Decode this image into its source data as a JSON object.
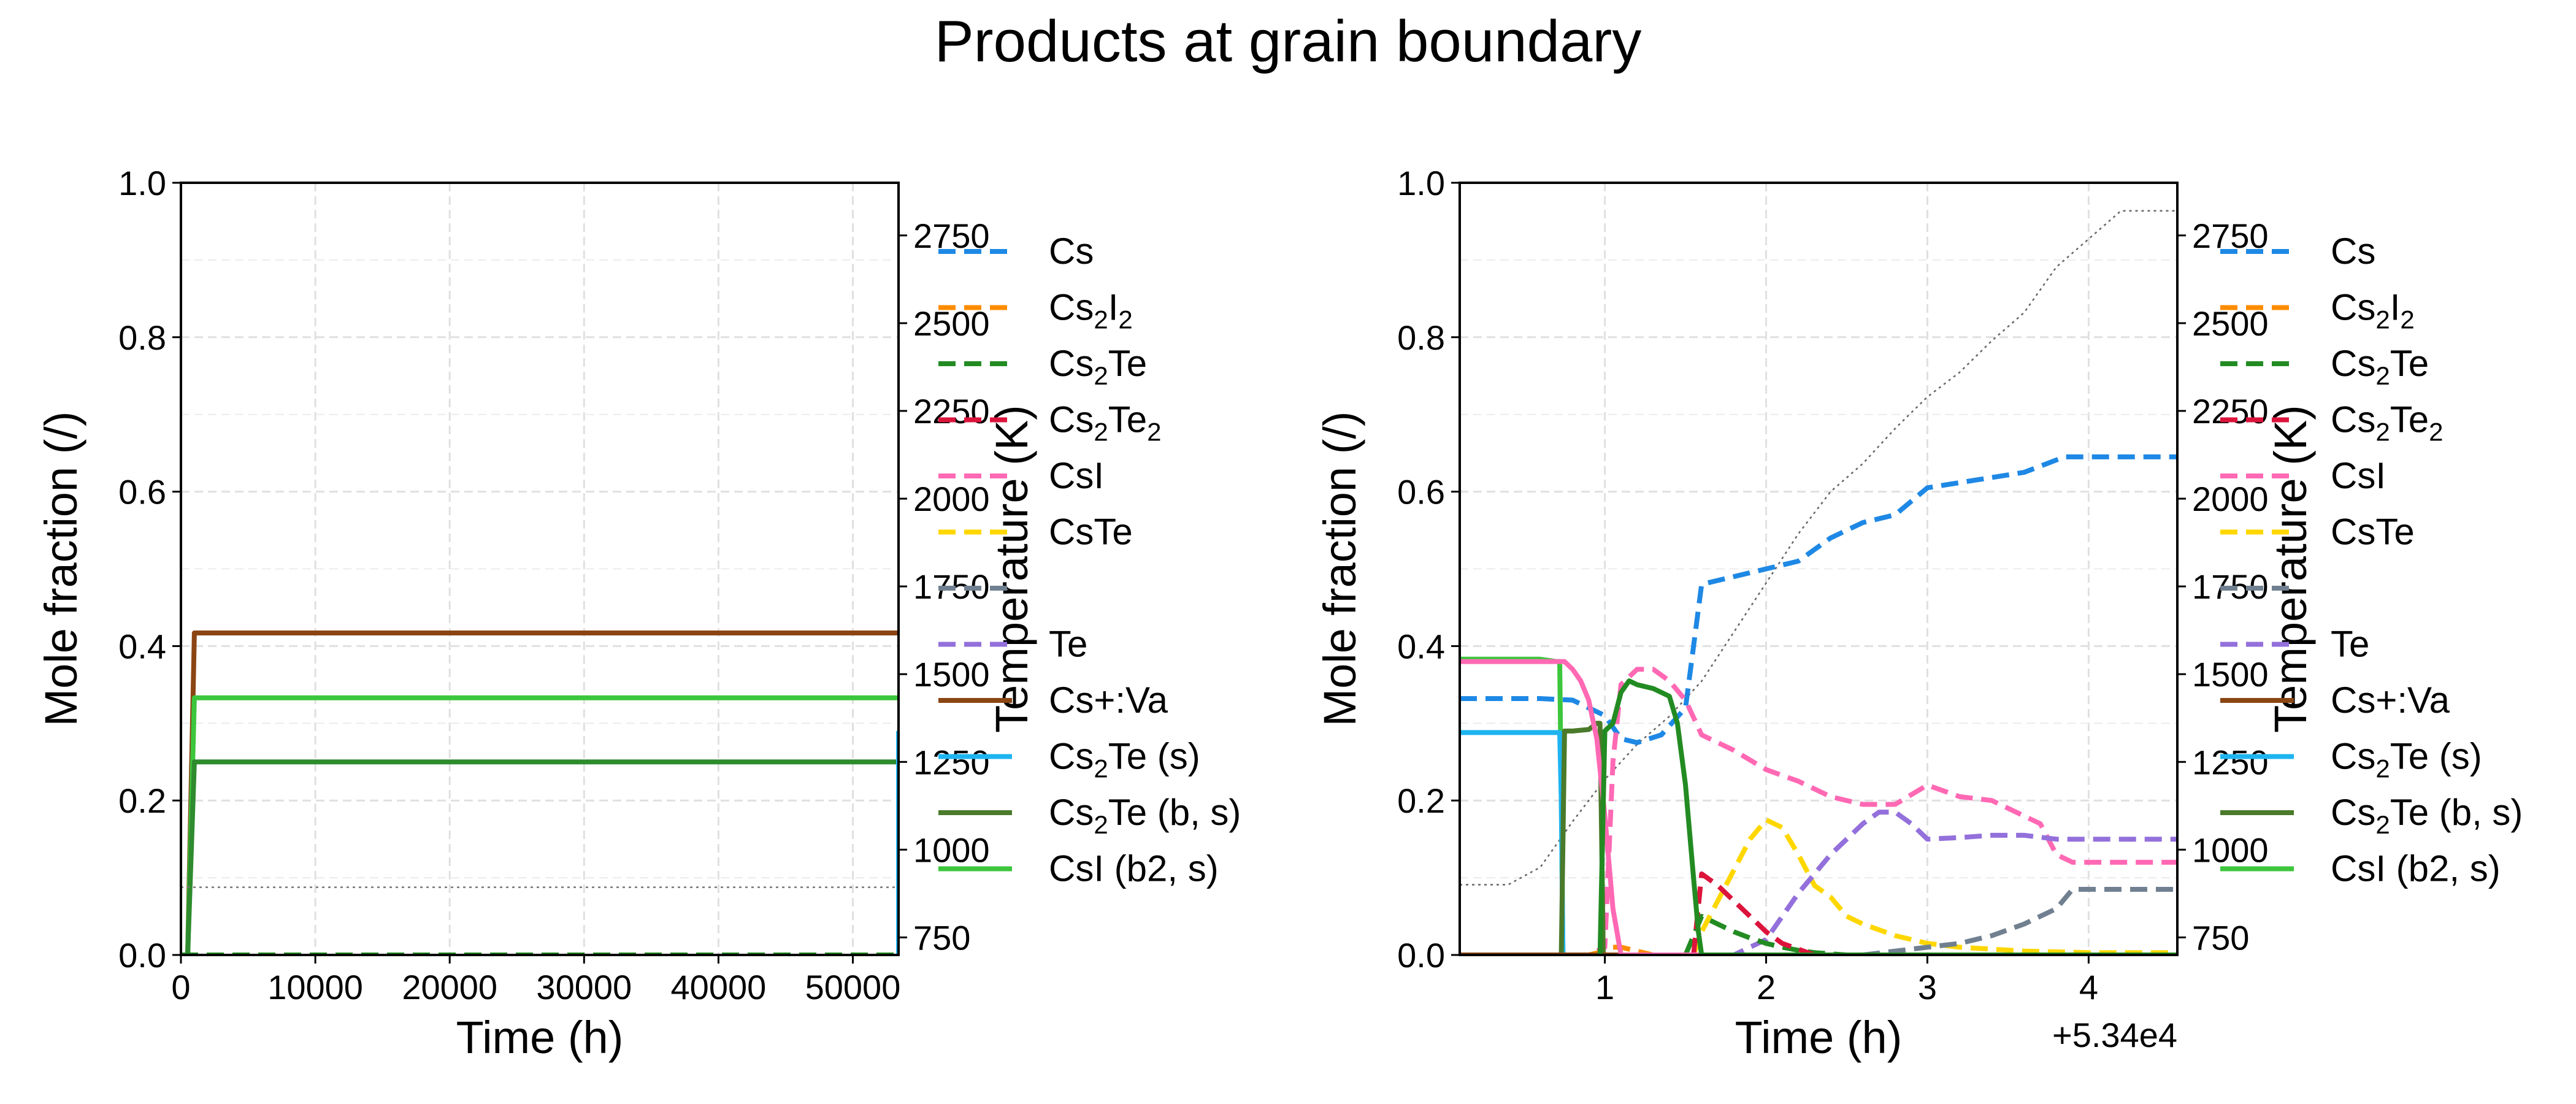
{
  "figure": {
    "title": "Products at grain boundary"
  },
  "chart_data": [
    {
      "type": "line",
      "xlabel": "Time (h)",
      "ylabel": "Mole fraction (/)",
      "y2label": "Temperature (K)",
      "x_offset_label": "",
      "xlim": [
        0,
        53400
      ],
      "ylim": [
        0,
        1
      ],
      "y2lim": [
        700,
        2900
      ],
      "xticks": [
        0,
        10000,
        20000,
        30000,
        40000,
        50000
      ],
      "xtick_labels": [
        "0",
        "10000",
        "20000",
        "30000",
        "40000",
        "50000"
      ],
      "yticks": [
        0,
        0.2,
        0.4,
        0.6,
        0.8,
        1.0
      ],
      "ytick_labels": [
        "0.0",
        "0.2",
        "0.4",
        "0.6",
        "0.8",
        "1.0"
      ],
      "y2ticks": [
        750,
        1000,
        1250,
        1500,
        1750,
        2000,
        2250,
        2500,
        2750
      ],
      "y2tick_labels": [
        "750",
        "1000",
        "1250",
        "1500",
        "1750",
        "2000",
        "2250",
        "2500",
        "2750"
      ],
      "grid": true,
      "legend_position": "right",
      "series": [
        {
          "name": "Cs+:Va",
          "color": "#8b4513",
          "dash": "solid",
          "x": [
            0,
            500,
            1000,
            53400
          ],
          "y": [
            0,
            0,
            0.417,
            0.417
          ]
        },
        {
          "name": "CsI (b2, s)",
          "color": "#3cc63c",
          "dash": "solid",
          "x": [
            0,
            500,
            1000,
            53400
          ],
          "y": [
            0,
            0,
            0.333,
            0.333
          ]
        },
        {
          "name": "Cs2Te (b, s)",
          "color": "#2e8b2e",
          "dash": "solid",
          "x": [
            0,
            500,
            1000,
            53400
          ],
          "y": [
            0,
            0,
            0.25,
            0.25
          ]
        },
        {
          "name": "Cs2Te (s)",
          "color": "#1eb4f0",
          "dash": "solid",
          "x": [
            53300,
            53400,
            53400
          ],
          "y": [
            0.29,
            0.29,
            0.0
          ]
        },
        {
          "name": "Cs",
          "color": "#1e88e5",
          "dash": "dashed",
          "x": [
            0,
            53400
          ],
          "y": [
            0.0,
            0.0
          ]
        },
        {
          "name": "Cs2Te",
          "color": "#228b22",
          "dash": "dashed",
          "x": [
            0,
            53400
          ],
          "y": [
            0.0,
            0.0
          ]
        },
        {
          "name": "Temperature",
          "axis": "right",
          "color": "#777777",
          "dash": "dotted",
          "x": [
            0,
            53400
          ],
          "y": [
            893,
            893
          ]
        }
      ]
    },
    {
      "type": "line",
      "xlabel": "Time (h)",
      "ylabel": "Mole fraction (/)",
      "y2label": "Temperature (K)",
      "x_offset_label": "+5.34e4",
      "xlim": [
        0.1,
        4.55
      ],
      "ylim": [
        0,
        1
      ],
      "y2lim": [
        700,
        2900
      ],
      "xticks": [
        1,
        2,
        3,
        4
      ],
      "xtick_labels": [
        "1",
        "2",
        "3",
        "4"
      ],
      "yticks": [
        0,
        0.2,
        0.4,
        0.6,
        0.8,
        1.0
      ],
      "ytick_labels": [
        "0.0",
        "0.2",
        "0.4",
        "0.6",
        "0.8",
        "1.0"
      ],
      "y2ticks": [
        750,
        1000,
        1250,
        1500,
        1750,
        2000,
        2250,
        2500,
        2750
      ],
      "y2tick_labels": [
        "750",
        "1000",
        "1250",
        "1500",
        "1750",
        "2000",
        "2250",
        "2500",
        "2750"
      ],
      "grid": true,
      "legend_position": "right",
      "series": [
        {
          "name": "Temperature",
          "axis": "right",
          "color": "#666666",
          "dash": "dotted",
          "x": [
            0.1,
            0.4,
            0.6,
            0.8,
            1.0,
            1.2,
            1.4,
            1.6,
            1.8,
            2.0,
            2.2,
            2.4,
            2.6,
            2.8,
            3.0,
            3.2,
            3.4,
            3.6,
            3.8,
            4.0,
            4.2,
            4.55
          ],
          "y": [
            900,
            900,
            950,
            1080,
            1200,
            1300,
            1380,
            1480,
            1620,
            1760,
            1900,
            2020,
            2100,
            2200,
            2290,
            2360,
            2450,
            2530,
            2660,
            2740,
            2820,
            2820
          ]
        },
        {
          "name": "Cs",
          "color": "#1e88e5",
          "dash": "dashed",
          "x": [
            0.1,
            0.6,
            0.8,
            1.0,
            1.1,
            1.2,
            1.35,
            1.5,
            1.6,
            1.8,
            2.0,
            2.2,
            2.4,
            2.6,
            2.8,
            3.0,
            3.3,
            3.6,
            3.85,
            4.2,
            4.55
          ],
          "y": [
            0.332,
            0.332,
            0.33,
            0.31,
            0.28,
            0.275,
            0.285,
            0.32,
            0.48,
            0.49,
            0.5,
            0.51,
            0.54,
            0.56,
            0.57,
            0.605,
            0.615,
            0.625,
            0.645,
            0.645,
            0.645
          ]
        },
        {
          "name": "CsI",
          "color": "#ff69b4",
          "dash": "dashed",
          "x": [
            0.8,
            0.9,
            1.0,
            1.05,
            1.1,
            1.2,
            1.3,
            1.4,
            1.5,
            1.6,
            1.8,
            2.0,
            2.2,
            2.4,
            2.6,
            2.8,
            3.0,
            3.2,
            3.4,
            3.6,
            3.7,
            3.8,
            3.9,
            4.55
          ],
          "y": [
            0.0,
            0.0,
            0.01,
            0.25,
            0.35,
            0.37,
            0.37,
            0.355,
            0.33,
            0.285,
            0.265,
            0.24,
            0.225,
            0.205,
            0.195,
            0.195,
            0.22,
            0.205,
            0.2,
            0.18,
            0.17,
            0.13,
            0.12,
            0.12
          ]
        },
        {
          "name": "CsTe",
          "color": "#ffd700",
          "dash": "dashed",
          "x": [
            1.55,
            1.6,
            1.7,
            1.8,
            1.9,
            2.0,
            2.1,
            2.2,
            2.3,
            2.4,
            2.5,
            2.6,
            2.8,
            3.0,
            3.2,
            3.6,
            4.0,
            4.55
          ],
          "y": [
            0.0,
            0.03,
            0.07,
            0.11,
            0.15,
            0.175,
            0.165,
            0.13,
            0.09,
            0.075,
            0.05,
            0.04,
            0.025,
            0.015,
            0.01,
            0.005,
            0.003,
            0.003
          ]
        },
        {
          "name": "Te",
          "color": "#9370db",
          "dash": "dashed",
          "x": [
            1.6,
            1.8,
            2.0,
            2.2,
            2.4,
            2.6,
            2.7,
            2.8,
            2.9,
            3.0,
            3.2,
            3.4,
            3.6,
            3.8,
            4.0,
            4.55
          ],
          "y": [
            0.0,
            0.0,
            0.02,
            0.08,
            0.13,
            0.17,
            0.185,
            0.185,
            0.17,
            0.15,
            0.152,
            0.155,
            0.155,
            0.15,
            0.15,
            0.15
          ]
        },
        {
          "name": "Cs2Te",
          "color": "#228b22",
          "dash": "dashed",
          "x": [
            1.5,
            1.6,
            1.7,
            1.8,
            1.9,
            2.0,
            2.1,
            2.2,
            2.3,
            2.5,
            4.55
          ],
          "y": [
            0.0,
            0.05,
            0.04,
            0.03,
            0.022,
            0.015,
            0.01,
            0.006,
            0.003,
            0.0,
            0.0
          ]
        },
        {
          "name": "Cs2Te2",
          "color": "#dc143c",
          "dash": "dashed",
          "x": [
            1.55,
            1.6,
            1.7,
            1.8,
            1.9,
            2.0,
            2.1,
            2.3,
            4.55
          ],
          "y": [
            0.0,
            0.105,
            0.09,
            0.07,
            0.05,
            0.03,
            0.015,
            0.0,
            0.0
          ]
        },
        {
          "name": "Cs2I2",
          "color": "#ff8c00",
          "dash": "dashed",
          "x": [
            0.9,
            1.0,
            1.05,
            1.1,
            1.2,
            1.3,
            4.55
          ],
          "y": [
            0.0,
            0.005,
            0.01,
            0.01,
            0.005,
            0.0,
            0.0
          ]
        },
        {
          "name": "—",
          "color": "#708090",
          "dash": "dashed",
          "x": [
            2.6,
            2.8,
            3.0,
            3.2,
            3.4,
            3.6,
            3.7,
            3.8,
            3.9,
            4.55
          ],
          "y": [
            0.0,
            0.005,
            0.01,
            0.015,
            0.025,
            0.04,
            0.05,
            0.06,
            0.085,
            0.085
          ]
        },
        {
          "name": "CsI (b2, s)",
          "color": "#3cc63c",
          "dash": "solid",
          "x": [
            0.1,
            0.6,
            0.7,
            0.72,
            0.73,
            0.74,
            4.55
          ],
          "y": [
            0.383,
            0.383,
            0.38,
            0.38,
            0.2,
            0.0,
            0.0
          ]
        },
        {
          "name": "Cs2Te (s)",
          "color": "#1eb4f0",
          "dash": "solid",
          "x": [
            0.1,
            0.6,
            0.7,
            0.72,
            0.73,
            0.74,
            4.55
          ],
          "y": [
            0.288,
            0.288,
            0.288,
            0.288,
            0.2,
            0.0,
            0.0
          ]
        },
        {
          "name": "Cs2Te (b, s)",
          "color": "#4a7a2a",
          "dash": "solid",
          "x": [
            0.73,
            0.75,
            0.8,
            0.9,
            0.95,
            0.97,
            0.98,
            0.99,
            4.55
          ],
          "y": [
            0.0,
            0.29,
            0.29,
            0.292,
            0.3,
            0.3,
            0.15,
            0.0,
            0.0
          ]
        },
        {
          "name": "Cs+:Va",
          "color": "#8b4513",
          "dash": "solid",
          "x": [
            0.1,
            4.55
          ],
          "y": [
            0.0,
            0.0
          ]
        },
        {
          "name": "CsI (b2, s) pink",
          "color": "#ff69b4",
          "dash": "solid",
          "x": [
            0.1,
            0.6,
            0.75,
            0.8,
            0.85,
            0.9,
            0.95,
            1.0,
            1.05,
            1.1,
            4.55
          ],
          "y": [
            0.38,
            0.38,
            0.38,
            0.37,
            0.355,
            0.33,
            0.28,
            0.18,
            0.06,
            0.0,
            0.0
          ]
        },
        {
          "name": "Cs2Te (b, s) green",
          "color": "#228b22",
          "dash": "solid",
          "x": [
            0.97,
            1.0,
            1.05,
            1.1,
            1.15,
            1.2,
            1.3,
            1.4,
            1.45,
            1.5,
            1.55,
            1.58,
            1.6,
            4.55
          ],
          "y": [
            0.0,
            0.29,
            0.3,
            0.34,
            0.355,
            0.35,
            0.345,
            0.335,
            0.3,
            0.22,
            0.1,
            0.03,
            0.0,
            0.0
          ]
        }
      ]
    }
  ],
  "legend": [
    {
      "label": "Cs",
      "sub": "",
      "color": "#1e88e5",
      "dash": "dashed"
    },
    {
      "label": "Cs",
      "sub": "2",
      "suffix": "I",
      "sub2": "2",
      "color": "#ff8c00",
      "dash": "dashed"
    },
    {
      "label": "Cs",
      "sub": "2",
      "suffix": "Te",
      "color": "#228b22",
      "dash": "dashed"
    },
    {
      "label": "Cs",
      "sub": "2",
      "suffix": "Te",
      "sub2": "2",
      "color": "#dc143c",
      "dash": "dashed"
    },
    {
      "label": "CsI",
      "sub": "",
      "color": "#ff69b4",
      "dash": "dashed"
    },
    {
      "label": "CsTe",
      "sub": "",
      "color": "#ffd700",
      "dash": "dashed"
    },
    {
      "label": "",
      "sub": "",
      "color": "#708090",
      "dash": "dashed"
    },
    {
      "label": "Te",
      "sub": "",
      "color": "#9370db",
      "dash": "dashed"
    },
    {
      "label": "Cs+:Va",
      "sub": "",
      "color": "#8b4513",
      "dash": "solid"
    },
    {
      "label": "Cs",
      "sub": "2",
      "suffix": "Te (s)",
      "color": "#1eb4f0",
      "dash": "solid"
    },
    {
      "label": "Cs",
      "sub": "2",
      "suffix": "Te (b, s)",
      "color": "#4a7a2a",
      "dash": "solid"
    },
    {
      "label": "CsI (b2, s)",
      "sub": "",
      "color": "#3cc63c",
      "dash": "solid"
    }
  ]
}
